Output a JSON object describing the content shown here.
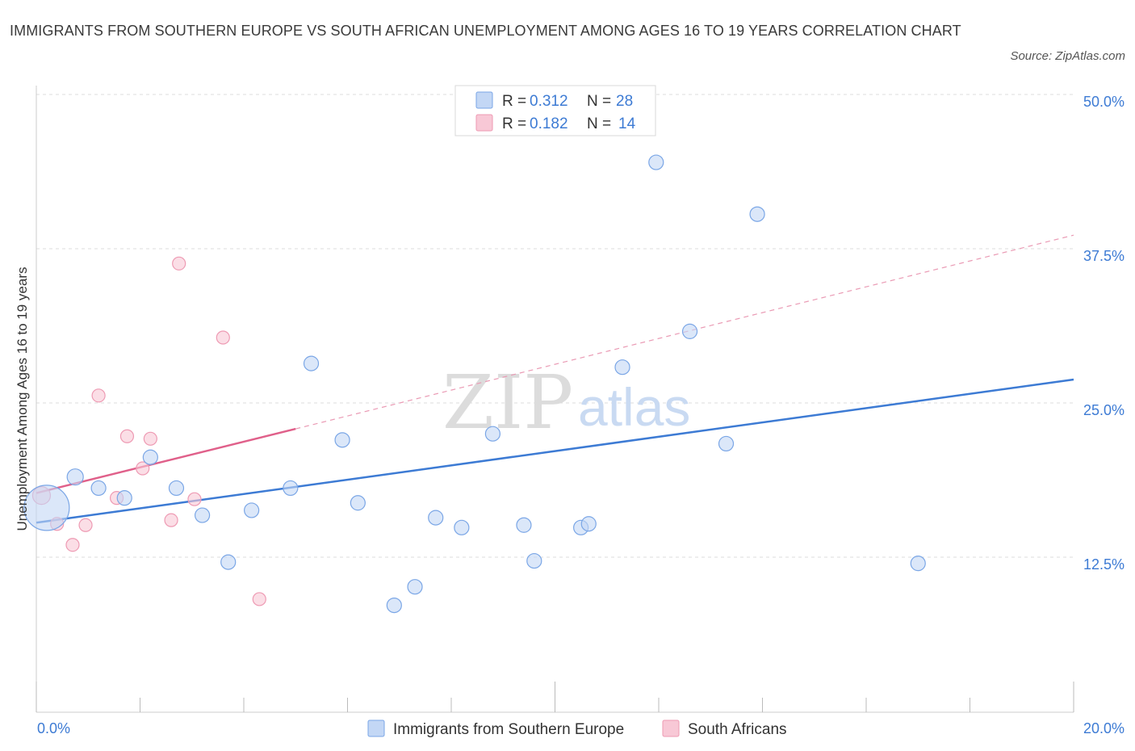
{
  "title": "IMMIGRANTS FROM SOUTHERN EUROPE VS SOUTH AFRICAN UNEMPLOYMENT AMONG AGES 16 TO 19 YEARS CORRELATION CHART",
  "source": "Source: ZipAtlas.com",
  "watermark": {
    "zip": "ZIP",
    "atlas": "atlas"
  },
  "legend": {
    "series": [
      {
        "r_label": "R = ",
        "r_value": "0.312",
        "n_label": "N = ",
        "n_value": "28",
        "fill": "#c3d7f5",
        "stroke": "#7aa6e6"
      },
      {
        "r_label": "R = ",
        "r_value": "0.182",
        "n_label": "N = ",
        "n_value": "14",
        "fill": "#f8c8d6",
        "stroke": "#ee9ab3"
      }
    ]
  },
  "chart_data": {
    "type": "scatter",
    "title": "IMMIGRANTS FROM SOUTHERN EUROPE VS SOUTH AFRICAN UNEMPLOYMENT AMONG AGES 16 TO 19 YEARS CORRELATION CHART",
    "xlabel": "",
    "ylabel": "Unemployment Among Ages 16 to 19 years",
    "xlim": [
      0,
      20
    ],
    "ylim": [
      0,
      50
    ],
    "x_tick_labels": [
      "0.0%",
      "20.0%"
    ],
    "y_ticks": [
      12.5,
      25.0,
      37.5,
      50.0
    ],
    "y_tick_labels": [
      "12.5%",
      "25.0%",
      "37.5%",
      "50.0%"
    ],
    "grid": true,
    "series": [
      {
        "name": "Immigrants from Southern Europe",
        "color": "#3d7bd4",
        "fill": "#c3d7f5",
        "stroke": "#7aa6e6",
        "points": [
          [
            0.2,
            16.5
          ],
          [
            0.75,
            19.0
          ],
          [
            1.2,
            18.1
          ],
          [
            1.7,
            17.3
          ],
          [
            2.2,
            20.6
          ],
          [
            2.7,
            18.1
          ],
          [
            3.2,
            15.9
          ],
          [
            3.7,
            12.1
          ],
          [
            4.15,
            16.3
          ],
          [
            4.9,
            18.1
          ],
          [
            5.3,
            28.2
          ],
          [
            5.9,
            22.0
          ],
          [
            6.2,
            16.9
          ],
          [
            6.9,
            8.6
          ],
          [
            7.3,
            10.1
          ],
          [
            7.7,
            15.7
          ],
          [
            8.2,
            14.9
          ],
          [
            8.8,
            22.5
          ],
          [
            9.4,
            15.1
          ],
          [
            9.6,
            12.2
          ],
          [
            10.5,
            14.9
          ],
          [
            10.65,
            15.2
          ],
          [
            11.3,
            27.9
          ],
          [
            11.95,
            44.5
          ],
          [
            12.6,
            30.8
          ],
          [
            13.3,
            21.7
          ],
          [
            13.9,
            40.3
          ],
          [
            17.0,
            12.0
          ]
        ],
        "sizes": [
          28,
          10,
          9,
          9,
          9,
          9,
          9,
          9,
          9,
          9,
          9,
          9,
          9,
          9,
          9,
          9,
          9,
          9,
          9,
          9,
          9,
          9,
          9,
          9,
          9,
          9,
          9,
          9
        ],
        "trend": {
          "x0": 0,
          "y0": 15.3,
          "x1": 20,
          "y1": 26.9
        }
      },
      {
        "name": "South Africans",
        "color": "#e0608a",
        "fill": "#f8c8d6",
        "stroke": "#ee9ab3",
        "points": [
          [
            0.1,
            17.5
          ],
          [
            0.4,
            15.2
          ],
          [
            0.7,
            13.5
          ],
          [
            0.95,
            15.1
          ],
          [
            1.2,
            25.6
          ],
          [
            1.55,
            17.3
          ],
          [
            1.75,
            22.3
          ],
          [
            2.05,
            19.7
          ],
          [
            2.2,
            22.1
          ],
          [
            2.6,
            15.5
          ],
          [
            2.75,
            36.3
          ],
          [
            3.05,
            17.2
          ],
          [
            3.6,
            30.3
          ],
          [
            4.3,
            9.1
          ]
        ],
        "sizes": [
          11,
          8,
          8,
          8,
          8,
          8,
          8,
          8,
          8,
          8,
          8,
          8,
          8,
          8
        ],
        "trend": {
          "x0": 0,
          "y0": 17.7,
          "x1": 5.0,
          "y1": 22.9
        },
        "trend_dashed": {
          "x0": 5.0,
          "y0": 22.9,
          "x1": 20,
          "y1": 38.6
        }
      }
    ]
  }
}
